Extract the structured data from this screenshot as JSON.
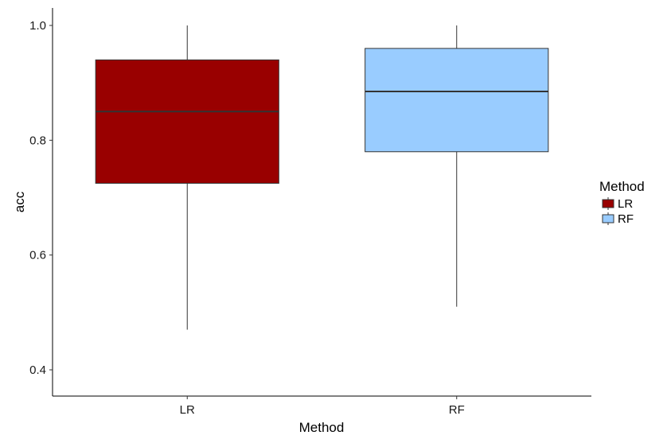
{
  "chart_data": {
    "type": "box",
    "title": "",
    "xlabel": "Method",
    "ylabel": "acc",
    "ylim": [
      0.35,
      1.03
    ],
    "y_ticks": [
      0.4,
      0.6,
      0.8,
      1.0
    ],
    "y_tick_labels": [
      "0.4",
      "0.6",
      "0.8",
      "1.0"
    ],
    "categories": [
      "LR",
      "RF"
    ],
    "grid": false,
    "legend": {
      "title": "Method",
      "placement": "right",
      "entries": [
        "LR",
        "RF"
      ]
    },
    "series": [
      {
        "name": "LR",
        "color": "#990000",
        "min": 0.47,
        "q1": 0.725,
        "median": 0.85,
        "q3": 0.94,
        "max": 1.0
      },
      {
        "name": "RF",
        "color": "#99ccff",
        "min": 0.51,
        "q1": 0.78,
        "median": 0.885,
        "q3": 0.96,
        "max": 1.0
      }
    ]
  }
}
